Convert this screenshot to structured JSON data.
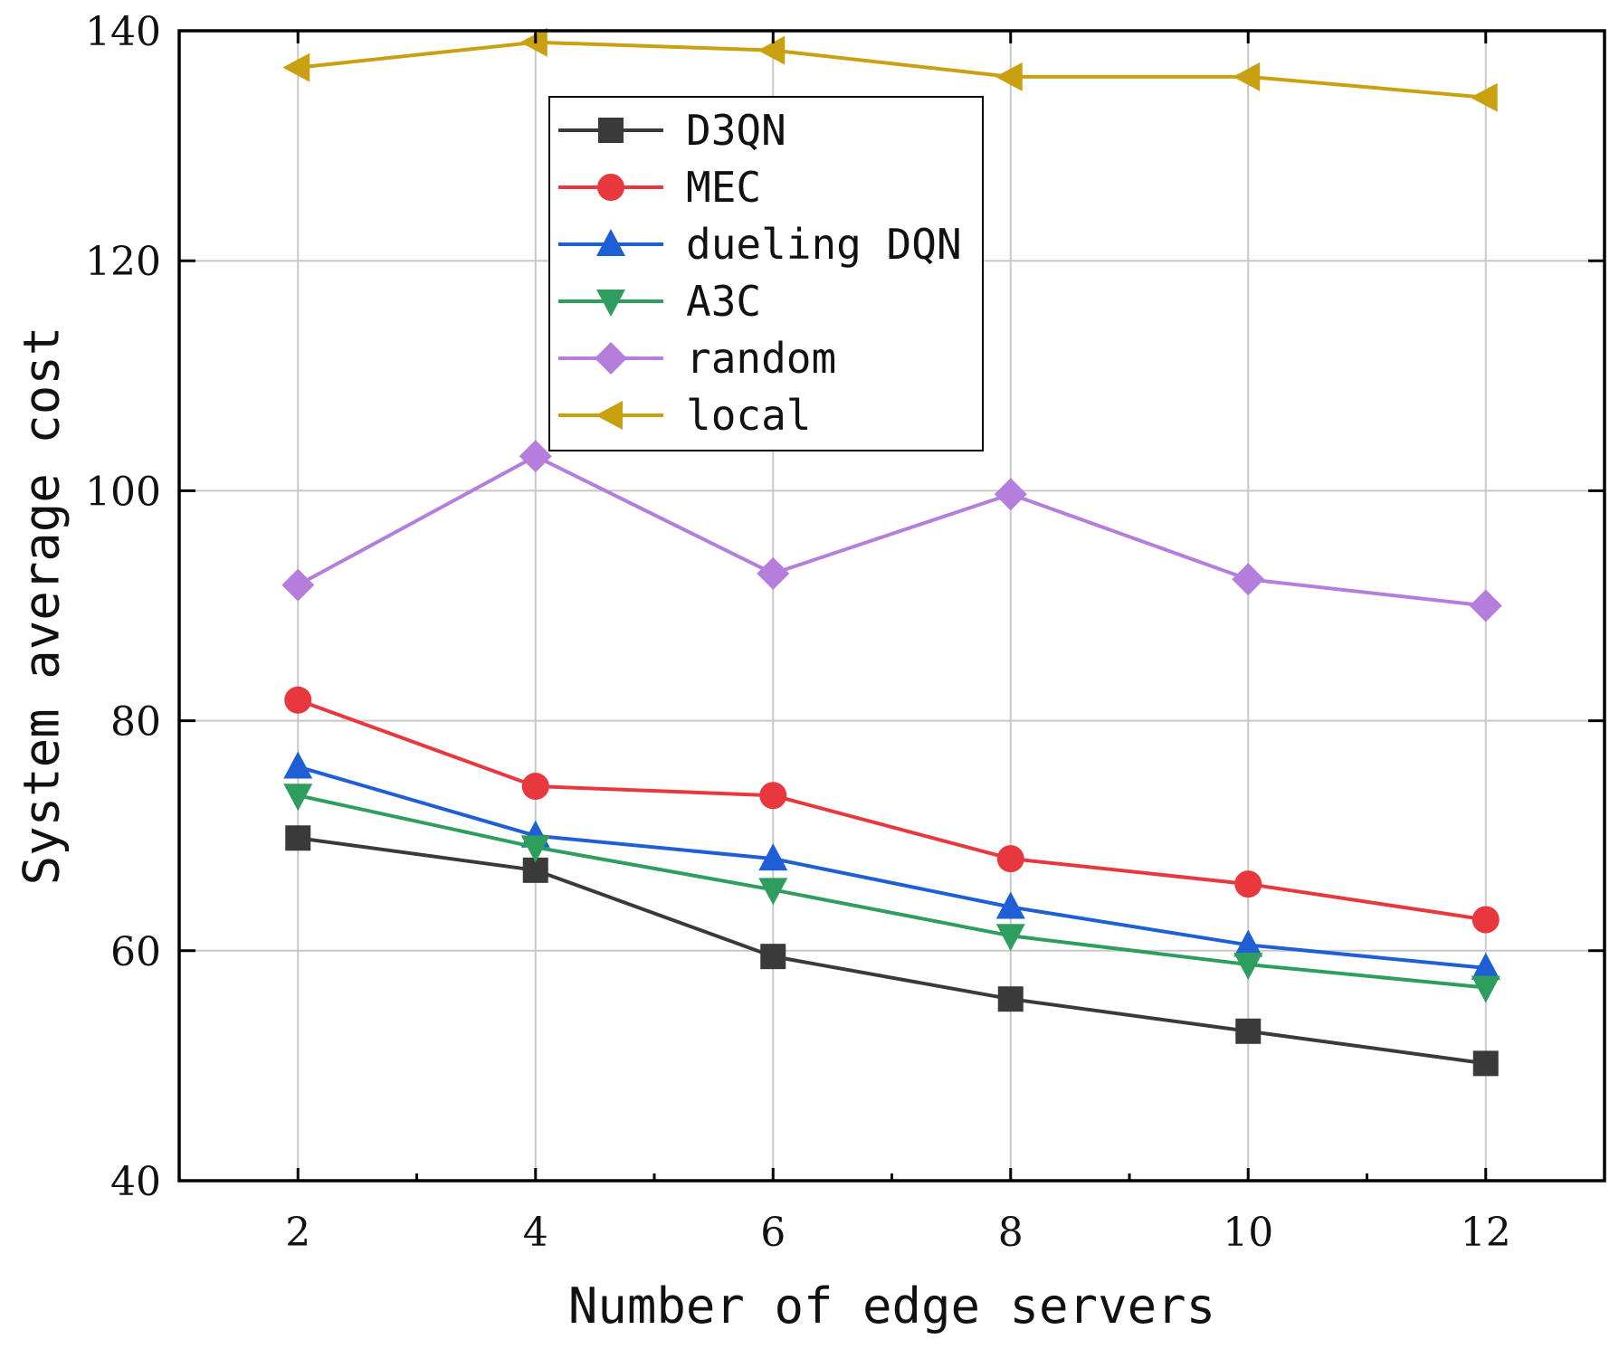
{
  "chart_data": {
    "type": "line",
    "title": "",
    "xlabel": "Number of edge servers",
    "ylabel": "System average cost",
    "x": [
      2,
      4,
      6,
      8,
      10,
      12
    ],
    "xlim": [
      1,
      13
    ],
    "ylim": [
      40,
      140
    ],
    "xticks": [
      "2",
      "4",
      "6",
      "8",
      "10",
      "12"
    ],
    "yticks": [
      "40",
      "60",
      "80",
      "100",
      "120",
      "140"
    ],
    "grid": true,
    "legend_position": "top-center",
    "series": [
      {
        "name": "D3QN",
        "color": "#3a3a3a",
        "marker": "square",
        "values": [
          69.8,
          67.0,
          59.5,
          55.8,
          53.0,
          50.2
        ]
      },
      {
        "name": "MEC",
        "color": "#e8383d",
        "marker": "circle",
        "values": [
          81.8,
          74.3,
          73.5,
          68.0,
          65.8,
          62.7
        ]
      },
      {
        "name": "dueling DQN",
        "color": "#1f5fd6",
        "marker": "triangle-up",
        "values": [
          76.0,
          70.0,
          68.0,
          63.8,
          60.5,
          58.5
        ]
      },
      {
        "name": "A3C",
        "color": "#2e9e5e",
        "marker": "triangle-down",
        "values": [
          73.5,
          69.0,
          65.3,
          61.3,
          58.8,
          56.8
        ]
      },
      {
        "name": "random",
        "color": "#b57edc",
        "marker": "diamond",
        "values": [
          91.8,
          103.0,
          92.8,
          99.7,
          92.3,
          90.0
        ]
      },
      {
        "name": "local",
        "color": "#c9a010",
        "marker": "triangle-left",
        "values": [
          136.8,
          139.0,
          138.3,
          136.0,
          136.0,
          134.2
        ]
      }
    ]
  }
}
